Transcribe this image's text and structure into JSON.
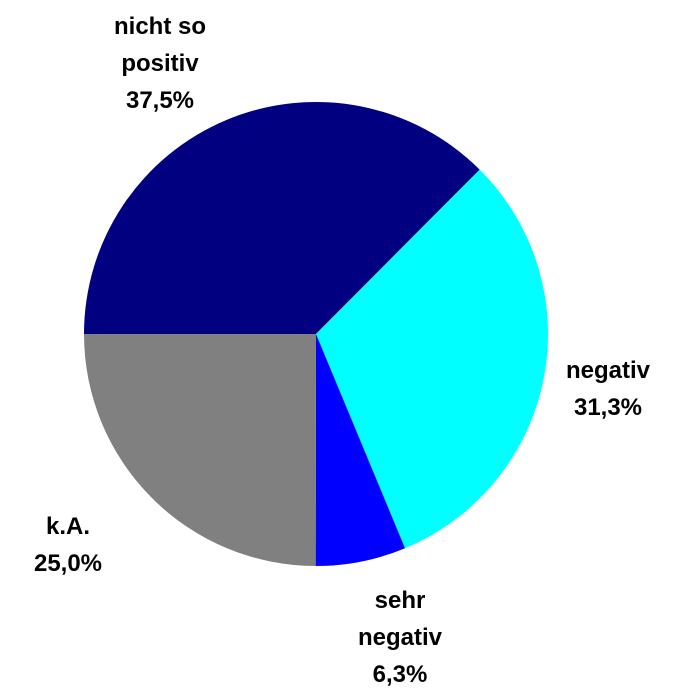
{
  "chart_data": {
    "type": "pie",
    "categories": [
      "nicht so positiv",
      "negativ",
      "sehr negativ",
      "k.A."
    ],
    "values": [
      37.5,
      31.3,
      6.3,
      25.0
    ],
    "value_labels": [
      "37,5%",
      "31,3%",
      "6,3%",
      "25,0%"
    ],
    "colors": [
      "#000080",
      "#00ffff",
      "#0000ff",
      "#808080"
    ]
  }
}
